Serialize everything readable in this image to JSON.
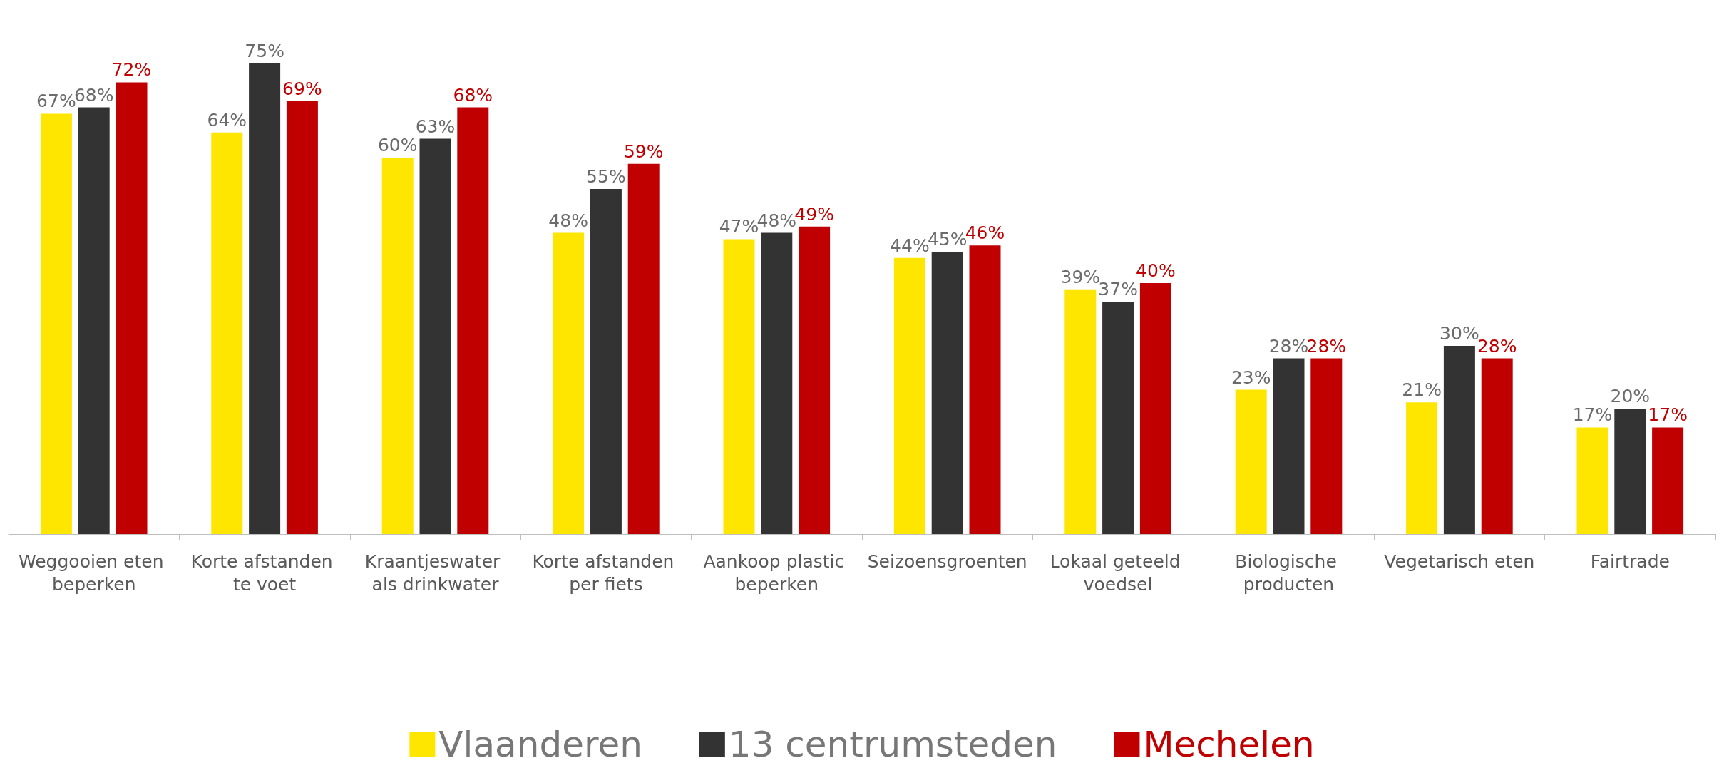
{
  "chart_data": {
    "type": "bar",
    "categories": [
      "Weggooien eten beperken",
      "Korte afstanden te voet",
      "Kraantjeswater als drinkwater",
      "Korte afstanden per fiets",
      "Aankoop plastic beperken",
      "Seizoensgroenten",
      "Lokaal geteeld voedsel",
      "Biologische producten",
      "Vegetarisch eten",
      "Fairtrade"
    ],
    "series": [
      {
        "name": "Vlaanderen",
        "color": "#ffe600",
        "values": [
          67,
          64,
          60,
          48,
          47,
          44,
          39,
          23,
          21,
          17
        ],
        "value_labels": [
          "67%",
          "64%",
          "60%",
          "48%",
          "47%",
          "44%",
          "39%",
          "23%",
          "21%",
          "17%"
        ]
      },
      {
        "name": "13 centrumsteden",
        "color": "#333333",
        "values": [
          68,
          75,
          63,
          55,
          48,
          45,
          37,
          28,
          30,
          20
        ],
        "value_labels": [
          "68%",
          "75%",
          "63%",
          "55%",
          "48%",
          "45%",
          "37%",
          "28%",
          "30%",
          "20%"
        ]
      },
      {
        "name": "Mechelen",
        "color": "#c00000",
        "values": [
          72,
          69,
          68,
          59,
          49,
          46,
          40,
          28,
          28,
          17
        ],
        "value_labels": [
          "72%",
          "69%",
          "68%",
          "59%",
          "49%",
          "46%",
          "40%",
          "28%",
          "28%",
          "17%"
        ]
      }
    ],
    "legend": "bottom"
  }
}
